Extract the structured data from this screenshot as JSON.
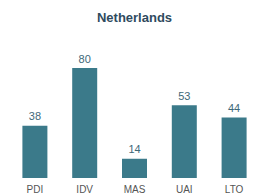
{
  "chart_data": {
    "type": "bar",
    "title": "Netherlands",
    "categories": [
      "PDI",
      "IDV",
      "MAS",
      "UAI",
      "LTO"
    ],
    "values": [
      38,
      80,
      14,
      53,
      44
    ],
    "color": "#3b7a8a",
    "ylim": [
      0,
      80
    ],
    "grid": false,
    "data_labels": true,
    "tick_labels": "x"
  }
}
